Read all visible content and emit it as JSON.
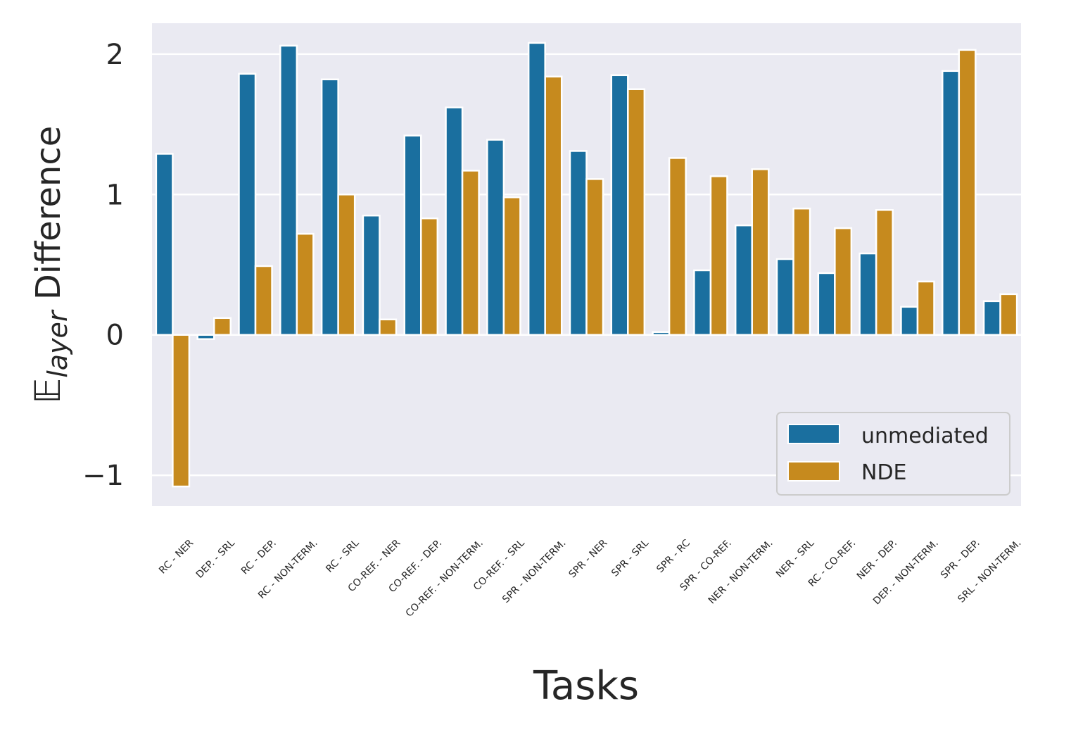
{
  "chart_data": {
    "type": "bar",
    "title": "",
    "xlabel": "Tasks",
    "ylabel_symbol": "𝔼",
    "ylabel_subscript": "layer",
    "ylabel_rest": " Difference",
    "ylim": [
      -1.22,
      2.22
    ],
    "yticks": [
      -1,
      0,
      1,
      2
    ],
    "ytick_labels": [
      "−1",
      "0",
      "1",
      "2"
    ],
    "grid": true,
    "legend_position": "lower-right",
    "categories": [
      "RC - NER",
      "DEP. - SRL",
      "RC - DEP.",
      "RC - NON-TERM.",
      "RC - SRL",
      "CO-REF. - NER",
      "CO-REF. - DEP.",
      "CO-REF. - NON-TERM.",
      "CO-REF. - SRL",
      "SPR - NON-TERM.",
      "SPR - NER",
      "SPR - SRL",
      "SPR - RC",
      "SPR - CO-REF.",
      "NER - NON-TERM.",
      "NER - SRL",
      "RC - CO-REF.",
      "NER - DEP.",
      "DEP. - NON-TERM.",
      "SPR - DEP.",
      "SRL - NON-TERM."
    ],
    "series": [
      {
        "name": "unmediated",
        "color": "#1a6f9f",
        "values": [
          1.29,
          -0.03,
          1.86,
          2.06,
          1.82,
          0.85,
          1.42,
          1.62,
          1.39,
          2.08,
          1.31,
          1.85,
          0.02,
          0.46,
          0.78,
          0.54,
          0.44,
          0.58,
          0.2,
          1.88,
          0.24
        ]
      },
      {
        "name": "NDE",
        "color": "#c68a1e",
        "values": [
          -1.08,
          0.12,
          0.49,
          0.72,
          1.0,
          0.11,
          0.83,
          1.17,
          0.98,
          1.84,
          1.11,
          1.75,
          1.26,
          1.13,
          1.18,
          0.9,
          0.76,
          0.89,
          0.38,
          2.03,
          0.29
        ]
      }
    ]
  }
}
